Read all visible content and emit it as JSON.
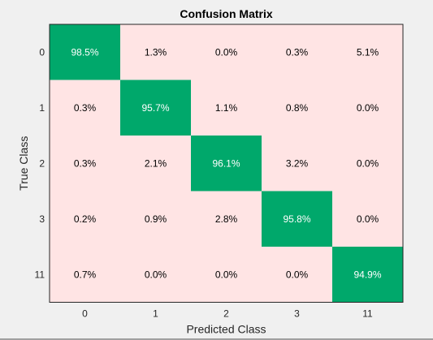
{
  "chart_data": {
    "type": "heatmap",
    "title": "Confusion Matrix",
    "xlabel": "Predicted Class",
    "ylabel": "True Class",
    "x_categories": [
      "0",
      "1",
      "2",
      "3",
      "11"
    ],
    "y_categories": [
      "0",
      "1",
      "2",
      "3",
      "11"
    ],
    "values": [
      [
        98.5,
        1.3,
        0.0,
        0.3,
        5.1
      ],
      [
        0.3,
        95.7,
        1.1,
        0.8,
        0.0
      ],
      [
        0.3,
        2.1,
        96.1,
        3.2,
        0.0
      ],
      [
        0.2,
        0.9,
        2.8,
        95.8,
        0.0
      ],
      [
        0.7,
        0.0,
        0.0,
        0.0,
        94.9
      ]
    ],
    "cell_labels": [
      [
        "98.5%",
        "1.3%",
        "0.0%",
        "0.3%",
        "5.1%"
      ],
      [
        "0.3%",
        "95.7%",
        "1.1%",
        "0.8%",
        "0.0%"
      ],
      [
        "0.3%",
        "2.1%",
        "96.1%",
        "3.2%",
        "0.0%"
      ],
      [
        "0.2%",
        "0.9%",
        "2.8%",
        "95.8%",
        "0.0%"
      ],
      [
        "0.7%",
        "0.0%",
        "0.0%",
        "0.0%",
        "94.9%"
      ]
    ],
    "colors": {
      "diagonal": "#00a86b",
      "off_diagonal": "#ffe4e4",
      "diagonal_text": "#ffffff",
      "off_diagonal_text": "#000000",
      "background": "#f0f0f0",
      "frame": "#262626"
    }
  }
}
